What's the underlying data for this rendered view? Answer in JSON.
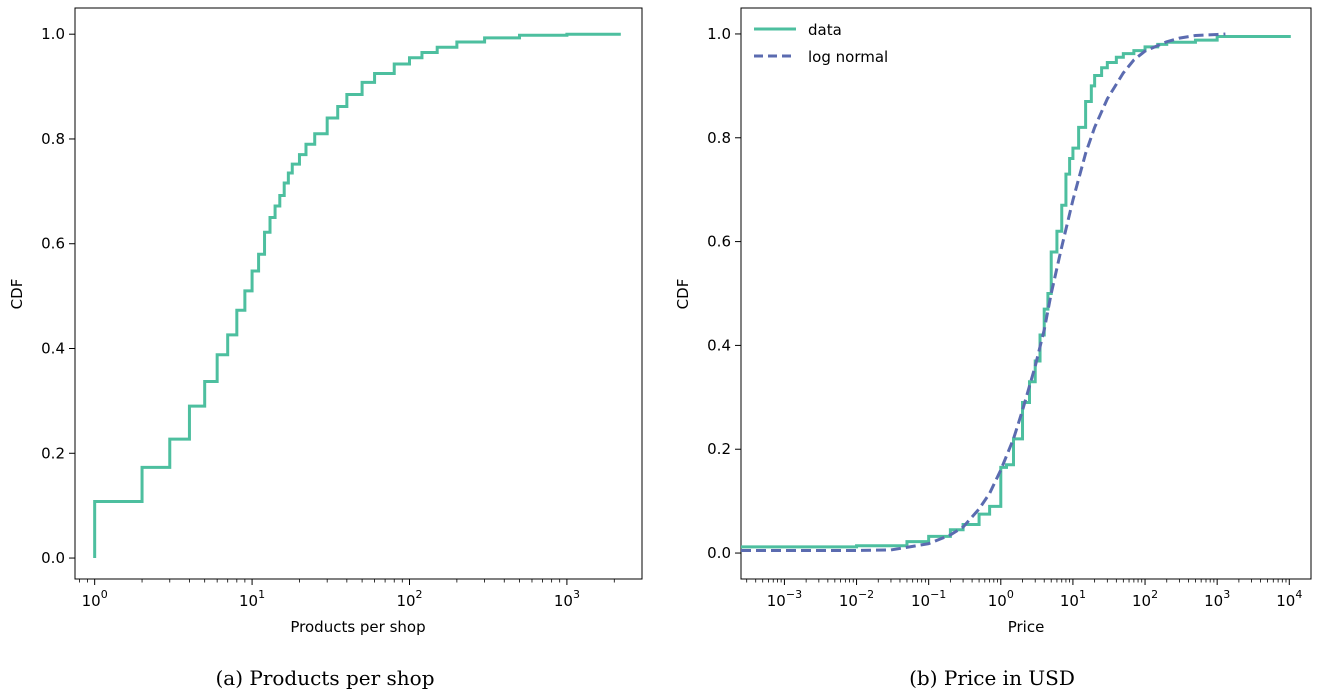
{
  "colors": {
    "data": "#4dbf9f",
    "lognormal": "#5b6bb0"
  },
  "chart_data": [
    {
      "type": "line",
      "caption": "(a) Products per shop",
      "xlabel": "Products per shop",
      "ylabel": "CDF",
      "xscale": "log",
      "xlim": [
        0.75,
        3000
      ],
      "ylim": [
        -0.04,
        1.05
      ],
      "xticks": [
        {
          "v": 1,
          "base": "10",
          "exp": "0"
        },
        {
          "v": 10,
          "base": "10",
          "exp": "1"
        },
        {
          "v": 100,
          "base": "10",
          "exp": "2"
        },
        {
          "v": 1000,
          "base": "10",
          "exp": "3"
        }
      ],
      "yticks": [
        {
          "v": 0.0,
          "label": "0.0"
        },
        {
          "v": 0.2,
          "label": "0.2"
        },
        {
          "v": 0.4,
          "label": "0.4"
        },
        {
          "v": 0.6,
          "label": "0.6"
        },
        {
          "v": 0.8,
          "label": "0.8"
        },
        {
          "v": 1.0,
          "label": "1.0"
        }
      ],
      "grid": false,
      "series": [
        {
          "style": "step",
          "x": [
            1,
            1,
            2,
            3,
            4,
            5,
            6,
            7,
            8,
            9,
            10,
            11,
            12,
            13,
            14,
            15,
            16,
            17,
            18,
            20,
            22,
            25,
            30,
            35,
            40,
            50,
            60,
            80,
            100,
            120,
            150,
            200,
            300,
            500,
            1000,
            2200
          ],
          "y": [
            0.0,
            0.108,
            0.173,
            0.227,
            0.29,
            0.337,
            0.388,
            0.426,
            0.473,
            0.51,
            0.548,
            0.58,
            0.622,
            0.65,
            0.672,
            0.692,
            0.716,
            0.735,
            0.752,
            0.77,
            0.79,
            0.81,
            0.84,
            0.862,
            0.885,
            0.908,
            0.925,
            0.943,
            0.955,
            0.965,
            0.975,
            0.985,
            0.993,
            0.998,
            1.0,
            1.0
          ]
        }
      ]
    },
    {
      "type": "line",
      "caption": "(b) Price in USD",
      "xlabel": "Price",
      "ylabel": "CDF",
      "xscale": "log",
      "xlim": [
        0.00025,
        20000
      ],
      "ylim": [
        -0.05,
        1.05
      ],
      "xticks": [
        {
          "v": 0.001,
          "base": "10",
          "exp": "−3"
        },
        {
          "v": 0.01,
          "base": "10",
          "exp": "−2"
        },
        {
          "v": 0.1,
          "base": "10",
          "exp": "−1"
        },
        {
          "v": 1,
          "base": "10",
          "exp": "0"
        },
        {
          "v": 10,
          "base": "10",
          "exp": "1"
        },
        {
          "v": 100,
          "base": "10",
          "exp": "2"
        },
        {
          "v": 1000,
          "base": "10",
          "exp": "3"
        },
        {
          "v": 10000,
          "base": "10",
          "exp": "4"
        }
      ],
      "yticks": [
        {
          "v": 0.0,
          "label": "0.0"
        },
        {
          "v": 0.2,
          "label": "0.2"
        },
        {
          "v": 0.4,
          "label": "0.4"
        },
        {
          "v": 0.6,
          "label": "0.6"
        },
        {
          "v": 0.8,
          "label": "0.8"
        },
        {
          "v": 1.0,
          "label": "1.0"
        }
      ],
      "grid": false,
      "legend": {
        "position": "top-left"
      },
      "series": [
        {
          "name": "data",
          "style": "step",
          "x": [
            0.00025,
            0.01,
            0.05,
            0.1,
            0.2,
            0.3,
            0.5,
            0.7,
            1.0,
            1.2,
            1.5,
            2.0,
            2.5,
            3.0,
            3.5,
            4.0,
            4.5,
            5.0,
            6.0,
            7.0,
            8.0,
            9.0,
            10,
            12,
            15,
            18,
            20,
            25,
            30,
            40,
            50,
            70,
            100,
            150,
            200,
            500,
            1000,
            10000
          ],
          "y": [
            0.012,
            0.014,
            0.022,
            0.032,
            0.045,
            0.055,
            0.075,
            0.09,
            0.165,
            0.17,
            0.22,
            0.29,
            0.33,
            0.37,
            0.42,
            0.47,
            0.5,
            0.58,
            0.62,
            0.67,
            0.73,
            0.76,
            0.78,
            0.82,
            0.87,
            0.9,
            0.92,
            0.935,
            0.945,
            0.955,
            0.962,
            0.968,
            0.975,
            0.98,
            0.984,
            0.988,
            0.995,
            0.998
          ]
        },
        {
          "name": "log normal",
          "style": "dashed",
          "x": [
            0.00025,
            0.003,
            0.01,
            0.03,
            0.1,
            0.2,
            0.3,
            0.5,
            0.7,
            1.0,
            1.5,
            2.0,
            3.0,
            4.0,
            5.0,
            7.0,
            10,
            15,
            20,
            30,
            50,
            70,
            100,
            200,
            300,
            500,
            1000,
            1300
          ],
          "y": [
            0.005,
            0.005,
            0.005,
            0.006,
            0.018,
            0.035,
            0.05,
            0.085,
            0.115,
            0.16,
            0.22,
            0.275,
            0.36,
            0.43,
            0.5,
            0.59,
            0.68,
            0.77,
            0.82,
            0.875,
            0.925,
            0.95,
            0.967,
            0.985,
            0.992,
            0.997,
            0.999,
            1.0
          ]
        }
      ]
    }
  ]
}
